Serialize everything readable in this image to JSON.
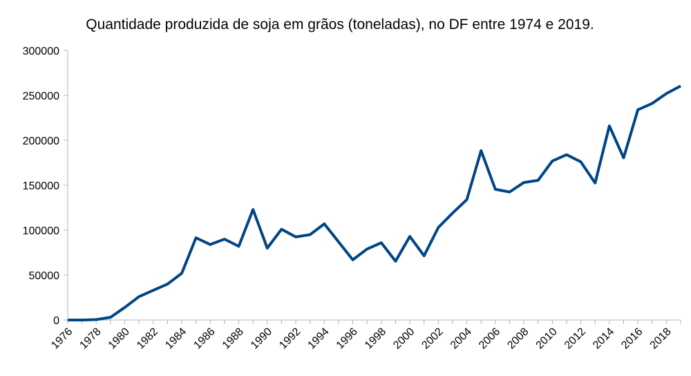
{
  "chart_data": {
    "type": "line",
    "title": "Quantidade produzida de soja em grãos (toneladas), no DF entre 1974 e 2019.",
    "categories": [
      "1976",
      null,
      "1978",
      null,
      "1980",
      null,
      "1982",
      null,
      "1984",
      null,
      "1986",
      null,
      "1988",
      null,
      "1990",
      null,
      "1992",
      null,
      "1994",
      null,
      "1996",
      null,
      "1998",
      null,
      "2000",
      null,
      "2002",
      null,
      "2004",
      null,
      "2006",
      null,
      "2008",
      null,
      "2010",
      null,
      "2012",
      null,
      "2014",
      null,
      "2016",
      null,
      "2018",
      null
    ],
    "series": [
      {
        "name": "Quantidade produzida",
        "color": "#004586",
        "values": [
          0,
          0,
          500,
          3000,
          14000,
          26000,
          33000,
          40000,
          52000,
          91500,
          84000,
          90000,
          82000,
          123000,
          80000,
          101000,
          92500,
          95000,
          107000,
          87000,
          67000,
          79000,
          86000,
          65500,
          93000,
          71500,
          103000,
          119000,
          134000,
          188500,
          145500,
          142500,
          153000,
          155500,
          177000,
          184000,
          176000,
          152500,
          216000,
          180500,
          234000,
          241000,
          252000,
          260500
        ]
      }
    ],
    "ylim": [
      0,
      300000
    ],
    "yticks": [
      0,
      50000,
      100000,
      150000,
      200000,
      250000,
      300000
    ],
    "grid": false
  }
}
